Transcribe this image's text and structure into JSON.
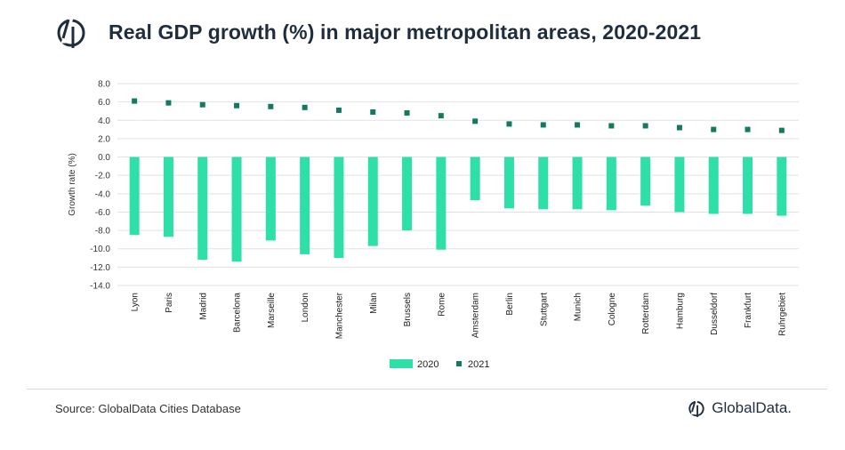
{
  "header": {
    "title": "Real GDP growth (%) in major metropolitan areas, 2020-2021",
    "logo_icon": "globaldata-logo-icon"
  },
  "footer": {
    "source": "Source: GlobalData Cities Database",
    "brand": "GlobalData."
  },
  "colors": {
    "series_2020": "#2ee0a8",
    "series_2021": "#127a5e",
    "grid": "#e2e2e2",
    "title": "#1f2d3d"
  },
  "chart_data": {
    "type": "bar",
    "ylabel": "Growth rate (%)",
    "ylim": [
      -14,
      8
    ],
    "yticks": [
      "8.0",
      "6.0",
      "4.0",
      "2.0",
      "0.0",
      "-2.0",
      "-4.0",
      "-6.0",
      "-8.0",
      "-10.0",
      "-12.0",
      "-14.0"
    ],
    "grid": true,
    "legend_position": "bottom",
    "categories": [
      "Lyon",
      "Paris",
      "Madrid",
      "Barcelona",
      "Marseille",
      "London",
      "Manchester",
      "Milan",
      "Brussels",
      "Rome",
      "Amsterdam",
      "Berlin",
      "Stuttgart",
      "Munich",
      "Cologne",
      "Rotterdam",
      "Hamburg",
      "Dusseldorf",
      "Frankfurt",
      "Ruhrgebiet"
    ],
    "series": [
      {
        "name": "2020",
        "type": "bar",
        "values": [
          -8.5,
          -8.7,
          -11.2,
          -11.4,
          -9.1,
          -10.6,
          -11.0,
          -9.7,
          -8.0,
          -10.1,
          -4.7,
          -5.6,
          -5.7,
          -5.7,
          -5.8,
          -5.3,
          -6.0,
          -6.2,
          -6.2,
          -6.4
        ]
      },
      {
        "name": "2021",
        "type": "marker",
        "values": [
          6.1,
          5.9,
          5.7,
          5.6,
          5.5,
          5.4,
          5.1,
          4.9,
          4.8,
          4.5,
          3.9,
          3.6,
          3.5,
          3.5,
          3.4,
          3.4,
          3.2,
          3.0,
          3.0,
          2.9
        ]
      }
    ]
  }
}
